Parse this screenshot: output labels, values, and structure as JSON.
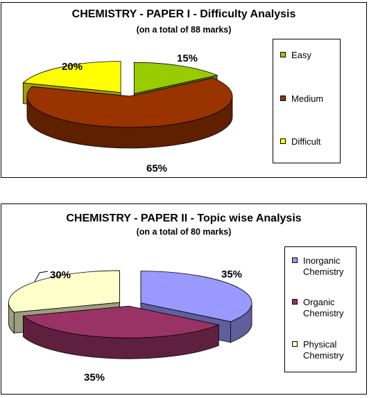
{
  "chart_data": [
    {
      "type": "pie",
      "title": "CHEMISTRY - PAPER I - Difficulty Analysis",
      "subtitle": "(on a total of 88 marks)",
      "categories": [
        "Easy",
        "Medium",
        "Difficult"
      ],
      "values": [
        15,
        65,
        20
      ],
      "value_labels": [
        "15%",
        "65%",
        "20%"
      ],
      "colors": [
        "#99cc00",
        "#993300",
        "#ffff00"
      ],
      "legend": "right"
    },
    {
      "type": "pie",
      "title": "CHEMISTRY - PAPER II - Topic wise Analysis",
      "subtitle": "(on a total of 80 marks)",
      "categories": [
        "Inorganic Chemistry",
        "Organic Chemistry",
        "Physical Chemistry"
      ],
      "legend_lines": [
        [
          "Inorganic",
          "Chemistry"
        ],
        [
          "Organic",
          "Chemistry"
        ],
        [
          "Physical",
          "Chemistry"
        ]
      ],
      "values": [
        35,
        35,
        30
      ],
      "value_labels": [
        "35%",
        "35%",
        "30%"
      ],
      "colors": [
        "#9999ff",
        "#993366",
        "#ffffcc"
      ],
      "legend": "right"
    }
  ]
}
